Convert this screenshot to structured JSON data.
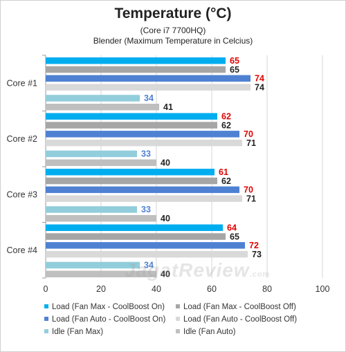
{
  "header": {
    "title": "Temperature (°C)",
    "subtitle": "(Core i7 7700HQ)",
    "subtitle2": "Blender (Maximum Temperature in Celcius)"
  },
  "watermark": {
    "brand": "JagatReview",
    "suffix": ".com"
  },
  "colors": {
    "load_fan_max_cb_on": "#00aeef",
    "load_fan_max_cb_off": "#a6a6a6",
    "load_fan_auto_cb_on": "#4f81d3",
    "load_fan_auto_cb_off": "#d9d9d9",
    "idle_fan_max": "#92cddc",
    "idle_fan_auto": "#bfbfbf",
    "value_label_red": "#e00000",
    "value_label_blue": "#4f81d3",
    "value_label_dark": "#222222"
  },
  "chart_data": {
    "type": "bar",
    "orientation": "horizontal",
    "title": "Temperature (°C)",
    "subtitle": "(Core i7 7700HQ)",
    "subtitle2": "Blender (Maximum Temperature in Celcius)",
    "categories": [
      "Core #1",
      "Core #2",
      "Core #3",
      "Core #4"
    ],
    "xlim": [
      0,
      100
    ],
    "xticks": [
      0,
      20,
      40,
      60,
      80,
      100
    ],
    "grid": true,
    "legend_position": "bottom",
    "series": [
      {
        "name": "Load (Fan Max - CoolBoost On)",
        "color": "#00aeef",
        "label_color": "#e00000",
        "values": [
          65,
          62,
          61,
          64
        ]
      },
      {
        "name": "Load (Fan Max - CoolBoost Off)",
        "color": "#a6a6a6",
        "label_color": "#222222",
        "values": [
          65,
          62,
          62,
          65
        ]
      },
      {
        "name": "Load (Fan Auto - CoolBoost On)",
        "color": "#4f81d3",
        "label_color": "#e00000",
        "values": [
          74,
          70,
          70,
          72
        ]
      },
      {
        "name": "Load (Fan Auto - CoolBoost Off)",
        "color": "#d9d9d9",
        "label_color": "#222222",
        "values": [
          74,
          71,
          71,
          73
        ]
      },
      {
        "name": "Idle (Fan Max)",
        "color": "#92cddc",
        "label_color": "#4f81d3",
        "values": [
          34,
          33,
          33,
          34
        ]
      },
      {
        "name": "Idle (Fan Auto)",
        "color": "#bfbfbf",
        "label_color": "#222222",
        "values": [
          41,
          40,
          40,
          40
        ]
      }
    ]
  }
}
